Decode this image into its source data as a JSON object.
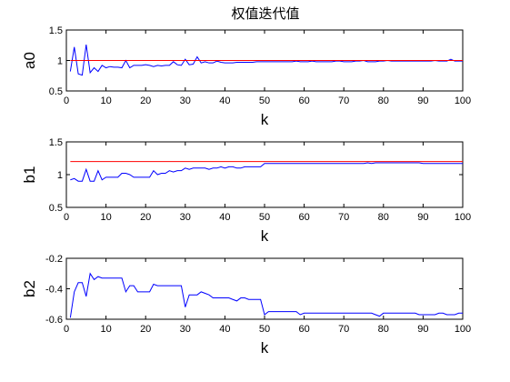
{
  "figure": {
    "title": "权值迭代值"
  },
  "chart_data": [
    {
      "type": "line",
      "ylabel": "a0",
      "xlabel": "k",
      "xlim": [
        0,
        100
      ],
      "ylim": [
        0.5,
        1.5
      ],
      "xticks": [
        0,
        10,
        20,
        30,
        40,
        50,
        60,
        70,
        80,
        90,
        100
      ],
      "yticks": [
        0.5,
        1,
        1.5
      ],
      "grid": false,
      "series": [
        {
          "color": "#0000ff",
          "x": [
            1,
            2,
            3,
            4,
            5,
            6,
            7,
            8,
            9,
            10,
            11,
            12,
            13,
            14,
            15,
            16,
            17,
            18,
            19,
            20,
            21,
            22,
            23,
            24,
            25,
            26,
            27,
            28,
            29,
            30,
            31,
            32,
            33,
            34,
            35,
            36,
            37,
            38,
            39,
            40,
            41,
            42,
            43,
            44,
            45,
            46,
            47,
            48,
            49,
            50,
            51,
            52,
            53,
            54,
            55,
            56,
            57,
            58,
            59,
            60,
            61,
            62,
            63,
            64,
            65,
            66,
            67,
            68,
            69,
            70,
            71,
            72,
            73,
            74,
            75,
            76,
            77,
            78,
            79,
            80,
            81,
            82,
            83,
            84,
            85,
            86,
            87,
            88,
            89,
            90,
            91,
            92,
            93,
            94,
            95,
            96,
            97,
            98,
            99,
            100
          ],
          "y": [
            0.82,
            1.22,
            0.78,
            0.76,
            1.26,
            0.8,
            0.88,
            0.82,
            0.92,
            0.88,
            0.9,
            0.89,
            0.89,
            0.88,
            1.0,
            0.88,
            0.92,
            0.92,
            0.92,
            0.93,
            0.92,
            0.9,
            0.92,
            0.91,
            0.92,
            0.92,
            0.98,
            0.93,
            0.92,
            1.02,
            0.93,
            0.94,
            1.06,
            0.96,
            0.98,
            0.96,
            0.96,
            0.99,
            0.97,
            0.96,
            0.96,
            0.96,
            0.97,
            0.97,
            0.97,
            0.97,
            0.97,
            0.98,
            0.98,
            0.98,
            0.98,
            0.98,
            0.98,
            0.98,
            0.98,
            0.98,
            0.98,
            0.99,
            0.98,
            0.98,
            0.98,
            0.99,
            0.98,
            0.98,
            0.98,
            0.98,
            0.98,
            0.99,
            0.99,
            0.98,
            0.98,
            0.98,
            0.99,
            0.99,
            1.0,
            0.98,
            0.98,
            0.98,
            0.99,
            0.99,
            1.0,
            0.99,
            0.99,
            0.99,
            0.99,
            0.99,
            0.99,
            0.99,
            0.99,
            0.99,
            0.99,
            0.99,
            1.0,
            0.99,
            0.99,
            0.99,
            1.02,
            0.99,
            0.99,
            0.99
          ]
        },
        {
          "color": "#ff0000",
          "x": [
            1,
            100
          ],
          "y": [
            1.0,
            1.0
          ]
        }
      ]
    },
    {
      "type": "line",
      "ylabel": "b1",
      "xlabel": "k",
      "xlim": [
        0,
        100
      ],
      "ylim": [
        0.5,
        1.5
      ],
      "xticks": [
        0,
        10,
        20,
        30,
        40,
        50,
        60,
        70,
        80,
        90,
        100
      ],
      "yticks": [
        0.5,
        1,
        1.5
      ],
      "grid": false,
      "series": [
        {
          "color": "#0000ff",
          "x": [
            1,
            2,
            3,
            4,
            5,
            6,
            7,
            8,
            9,
            10,
            11,
            12,
            13,
            14,
            15,
            16,
            17,
            18,
            19,
            20,
            21,
            22,
            23,
            24,
            25,
            26,
            27,
            28,
            29,
            30,
            31,
            32,
            33,
            34,
            35,
            36,
            37,
            38,
            39,
            40,
            41,
            42,
            43,
            44,
            45,
            46,
            47,
            48,
            49,
            50,
            51,
            52,
            53,
            54,
            55,
            56,
            57,
            58,
            59,
            60,
            61,
            62,
            63,
            64,
            65,
            66,
            67,
            68,
            69,
            70,
            71,
            72,
            73,
            74,
            75,
            76,
            77,
            78,
            79,
            80,
            81,
            82,
            83,
            84,
            85,
            86,
            87,
            88,
            89,
            90,
            91,
            92,
            93,
            94,
            95,
            96,
            97,
            98,
            99,
            100
          ],
          "y": [
            0.92,
            0.94,
            0.9,
            0.9,
            1.08,
            0.9,
            0.9,
            1.06,
            0.92,
            0.96,
            0.96,
            0.96,
            0.96,
            1.02,
            1.02,
            1.0,
            0.96,
            0.96,
            0.96,
            0.96,
            0.96,
            1.06,
            1.0,
            1.02,
            1.02,
            1.06,
            1.04,
            1.06,
            1.06,
            1.1,
            1.08,
            1.1,
            1.1,
            1.1,
            1.1,
            1.08,
            1.1,
            1.1,
            1.12,
            1.1,
            1.12,
            1.12,
            1.1,
            1.1,
            1.12,
            1.12,
            1.12,
            1.12,
            1.12,
            1.17,
            1.17,
            1.17,
            1.17,
            1.17,
            1.17,
            1.17,
            1.17,
            1.17,
            1.17,
            1.17,
            1.17,
            1.17,
            1.17,
            1.17,
            1.17,
            1.17,
            1.17,
            1.17,
            1.17,
            1.17,
            1.17,
            1.17,
            1.17,
            1.17,
            1.17,
            1.18,
            1.17,
            1.18,
            1.18,
            1.18,
            1.18,
            1.18,
            1.18,
            1.18,
            1.18,
            1.18,
            1.18,
            1.18,
            1.18,
            1.17,
            1.17,
            1.17,
            1.17,
            1.17,
            1.17,
            1.17,
            1.17,
            1.17,
            1.17,
            1.17
          ]
        },
        {
          "color": "#ff0000",
          "x": [
            1,
            100
          ],
          "y": [
            1.2,
            1.2
          ]
        }
      ]
    },
    {
      "type": "line",
      "ylabel": "b2",
      "xlabel": "k",
      "xlim": [
        0,
        100
      ],
      "ylim": [
        -0.6,
        -0.2
      ],
      "xticks": [
        0,
        10,
        20,
        30,
        40,
        50,
        60,
        70,
        80,
        90,
        100
      ],
      "yticks": [
        -0.6,
        -0.4,
        -0.2
      ],
      "grid": false,
      "series": [
        {
          "color": "#0000ff",
          "x": [
            1,
            2,
            3,
            4,
            5,
            6,
            7,
            8,
            9,
            10,
            11,
            12,
            13,
            14,
            15,
            16,
            17,
            18,
            19,
            20,
            21,
            22,
            23,
            24,
            25,
            26,
            27,
            28,
            29,
            30,
            31,
            32,
            33,
            34,
            35,
            36,
            37,
            38,
            39,
            40,
            41,
            42,
            43,
            44,
            45,
            46,
            47,
            48,
            49,
            50,
            51,
            52,
            53,
            54,
            55,
            56,
            57,
            58,
            59,
            60,
            61,
            62,
            63,
            64,
            65,
            66,
            67,
            68,
            69,
            70,
            71,
            72,
            73,
            74,
            75,
            76,
            77,
            78,
            79,
            80,
            81,
            82,
            83,
            84,
            85,
            86,
            87,
            88,
            89,
            90,
            91,
            92,
            93,
            94,
            95,
            96,
            97,
            98,
            99,
            100
          ],
          "y": [
            -0.59,
            -0.42,
            -0.36,
            -0.36,
            -0.45,
            -0.3,
            -0.34,
            -0.32,
            -0.33,
            -0.33,
            -0.33,
            -0.33,
            -0.33,
            -0.33,
            -0.42,
            -0.38,
            -0.38,
            -0.42,
            -0.42,
            -0.42,
            -0.42,
            -0.37,
            -0.38,
            -0.38,
            -0.38,
            -0.38,
            -0.38,
            -0.38,
            -0.38,
            -0.52,
            -0.44,
            -0.44,
            -0.44,
            -0.42,
            -0.43,
            -0.44,
            -0.46,
            -0.46,
            -0.46,
            -0.46,
            -0.46,
            -0.47,
            -0.48,
            -0.46,
            -0.46,
            -0.47,
            -0.47,
            -0.47,
            -0.47,
            -0.57,
            -0.55,
            -0.55,
            -0.55,
            -0.55,
            -0.55,
            -0.55,
            -0.55,
            -0.55,
            -0.57,
            -0.56,
            -0.56,
            -0.56,
            -0.56,
            -0.56,
            -0.56,
            -0.56,
            -0.56,
            -0.56,
            -0.56,
            -0.56,
            -0.56,
            -0.56,
            -0.56,
            -0.56,
            -0.56,
            -0.56,
            -0.56,
            -0.57,
            -0.58,
            -0.56,
            -0.56,
            -0.56,
            -0.56,
            -0.56,
            -0.56,
            -0.56,
            -0.56,
            -0.56,
            -0.57,
            -0.57,
            -0.57,
            -0.57,
            -0.57,
            -0.56,
            -0.56,
            -0.57,
            -0.57,
            -0.57,
            -0.56,
            -0.56
          ]
        }
      ]
    }
  ]
}
